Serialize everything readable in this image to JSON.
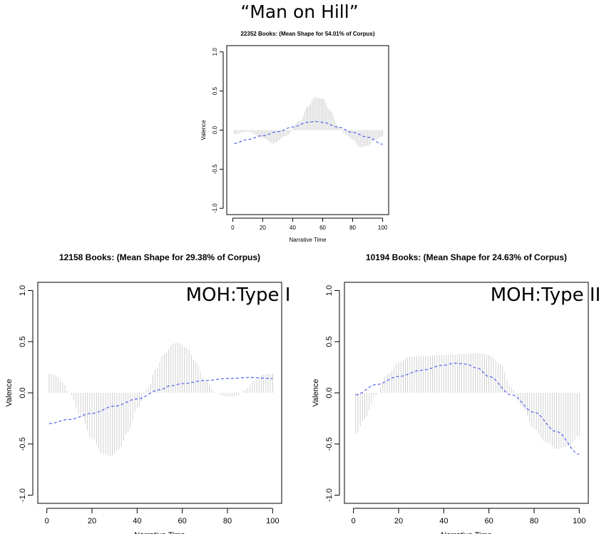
{
  "page_title": "“Man on Hill”",
  "chart_data": [
    {
      "type": "line",
      "id": "top",
      "title": "22352 Books: (Mean Shape for 54.01% of Corpus)",
      "overlay_label": "",
      "xlabel": "Narrative Time",
      "ylabel": "Valence",
      "xlim": [
        0,
        100
      ],
      "ylim": [
        -1.0,
        1.0
      ],
      "xticks": [
        "0",
        "20",
        "40",
        "60",
        "80",
        "100"
      ],
      "yticks": [
        "-1.0",
        "-0.5",
        "0.0",
        "0.5",
        "1.0"
      ],
      "grid": false,
      "spikes": {
        "x": [
          1,
          10,
          20,
          27,
          35,
          45,
          50,
          55,
          60,
          65,
          70,
          75,
          80,
          85,
          90,
          95,
          100
        ],
        "y": [
          -0.05,
          -0.02,
          -0.1,
          -0.17,
          -0.08,
          0.12,
          0.3,
          0.42,
          0.4,
          0.25,
          0.05,
          -0.05,
          -0.12,
          -0.22,
          -0.2,
          -0.12,
          -0.08
        ]
      },
      "mean_line": {
        "x": [
          1,
          10,
          20,
          30,
          40,
          50,
          55,
          60,
          70,
          80,
          90,
          100
        ],
        "y": [
          -0.17,
          -0.12,
          -0.07,
          -0.02,
          0.04,
          0.1,
          0.11,
          0.1,
          0.04,
          -0.03,
          -0.09,
          -0.18
        ]
      },
      "colors": {
        "spikes": "#bdbdbd",
        "mean_line": "#5060ee"
      }
    },
    {
      "type": "line",
      "id": "left",
      "title": "12158 Books: (Mean Shape for 29.38% of Corpus)",
      "overlay_label": "MOH:Type I",
      "xlabel": "Narrative Time",
      "ylabel": "Valence",
      "xlim": [
        0,
        100
      ],
      "ylim": [
        -1.0,
        1.0
      ],
      "xticks": [
        "0",
        "20",
        "40",
        "60",
        "80",
        "100"
      ],
      "yticks": [
        "-1.0",
        "-0.5",
        "0.0",
        "0.5",
        "1.0"
      ],
      "grid": false,
      "spikes": {
        "x": [
          1,
          4,
          7,
          10,
          15,
          20,
          25,
          28,
          32,
          36,
          40,
          45,
          48,
          52,
          56,
          58,
          62,
          66,
          70,
          75,
          80,
          84,
          88,
          92,
          96,
          100
        ],
        "y": [
          0.19,
          0.17,
          0.1,
          0.0,
          -0.22,
          -0.45,
          -0.6,
          -0.62,
          -0.55,
          -0.38,
          -0.15,
          0.05,
          0.22,
          0.38,
          0.48,
          0.49,
          0.44,
          0.3,
          0.12,
          0.0,
          -0.04,
          -0.03,
          0.03,
          0.12,
          0.18,
          0.19
        ]
      },
      "mean_line": {
        "x": [
          1,
          10,
          20,
          30,
          40,
          50,
          55,
          60,
          70,
          80,
          90,
          100
        ],
        "y": [
          -0.3,
          -0.26,
          -0.2,
          -0.13,
          -0.06,
          0.03,
          0.07,
          0.09,
          0.12,
          0.14,
          0.15,
          0.14
        ]
      },
      "colors": {
        "spikes": "#bdbdbd",
        "mean_line": "#5060ee"
      }
    },
    {
      "type": "line",
      "id": "right",
      "title": "10194 Books: (Mean Shape for 24.63% of Corpus)",
      "overlay_label": "MOH:Type II",
      "xlabel": "Narrative Time",
      "ylabel": "Valence",
      "xlim": [
        0,
        100
      ],
      "ylim": [
        -1.0,
        1.0
      ],
      "xticks": [
        "0",
        "20",
        "40",
        "60",
        "80",
        "100"
      ],
      "yticks": [
        "-1.0",
        "-0.5",
        "0.0",
        "0.5",
        "1.0"
      ],
      "grid": false,
      "spikes": {
        "x": [
          1,
          5,
          10,
          15,
          20,
          25,
          30,
          40,
          50,
          55,
          60,
          65,
          70,
          75,
          80,
          85,
          90,
          95,
          100
        ],
        "y": [
          -0.4,
          -0.25,
          -0.02,
          0.18,
          0.3,
          0.35,
          0.36,
          0.37,
          0.38,
          0.39,
          0.37,
          0.28,
          0.05,
          -0.15,
          -0.35,
          -0.48,
          -0.55,
          -0.52,
          -0.42
        ]
      },
      "mean_line": {
        "x": [
          1,
          10,
          20,
          30,
          40,
          45,
          50,
          55,
          60,
          70,
          80,
          90,
          100
        ],
        "y": [
          -0.02,
          0.08,
          0.16,
          0.22,
          0.27,
          0.29,
          0.28,
          0.24,
          0.16,
          -0.02,
          -0.19,
          -0.38,
          -0.6
        ]
      },
      "colors": {
        "spikes": "#bdbdbd",
        "mean_line": "#5060ee"
      }
    }
  ]
}
